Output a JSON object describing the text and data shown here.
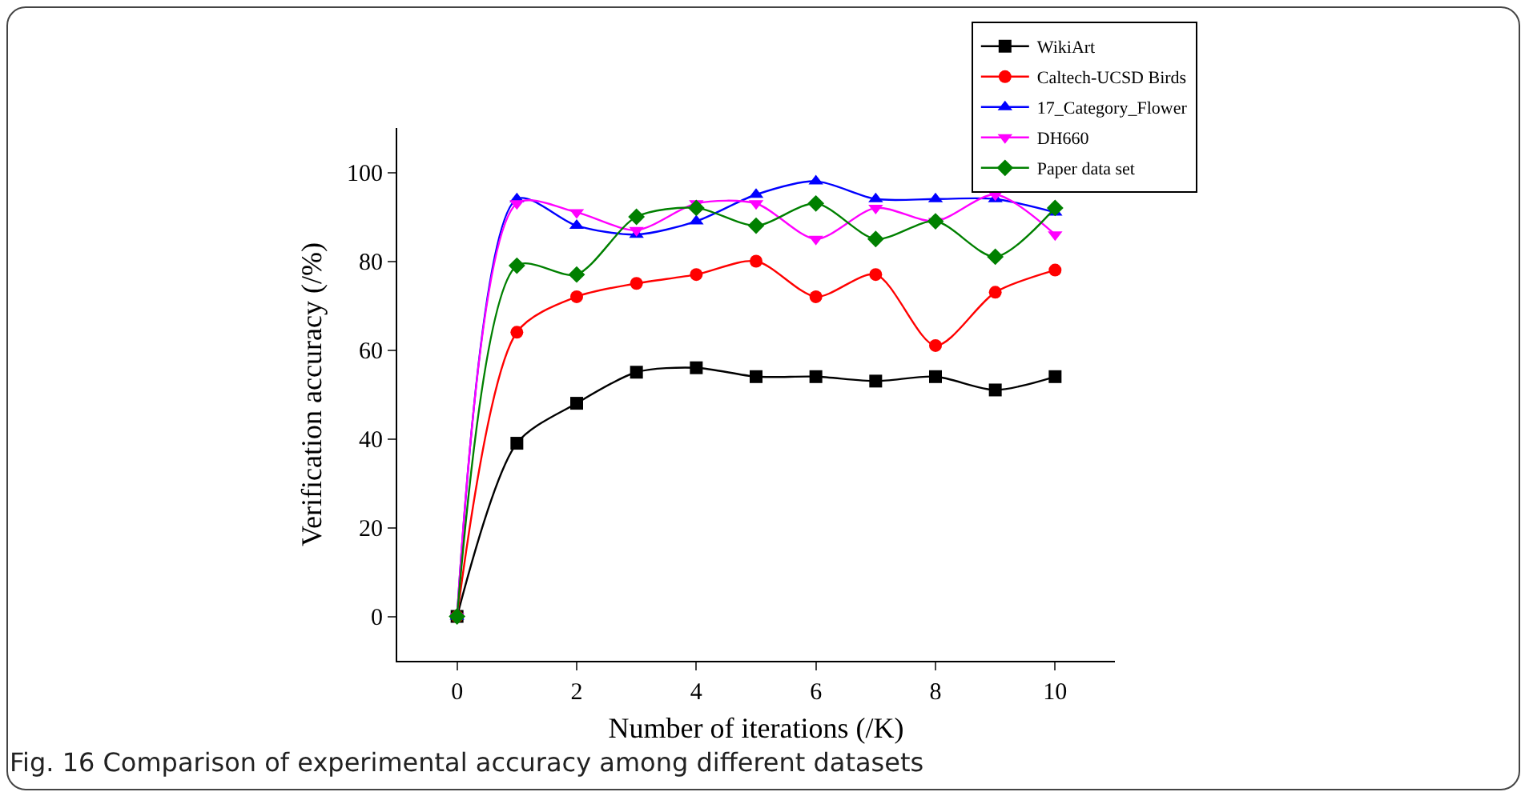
{
  "chart_data": {
    "type": "line",
    "xlabel": "Number of iterations (/K)",
    "ylabel": "Verification accuracy (/%)",
    "x": [
      0,
      1,
      2,
      3,
      4,
      5,
      6,
      7,
      8,
      9,
      10
    ],
    "xlim": [
      -1,
      11
    ],
    "xticks": [
      0,
      2,
      4,
      6,
      8,
      10
    ],
    "ylim": [
      -10,
      110
    ],
    "yticks": [
      0,
      20,
      40,
      60,
      80,
      100
    ],
    "grid": false,
    "legend": "top right",
    "line_style": "solid",
    "series": [
      {
        "name": "WikiArt",
        "color": "#000000",
        "marker": "square",
        "values": [
          0,
          39,
          48,
          55,
          56,
          54,
          54,
          53,
          54,
          51,
          54
        ]
      },
      {
        "name": "Caltech-UCSD Birds",
        "color": "#ff0000",
        "marker": "circle",
        "values": [
          0,
          64,
          72,
          75,
          77,
          80,
          72,
          77,
          61,
          73,
          78
        ]
      },
      {
        "name": "17_Category_Flower",
        "color": "#0000ff",
        "marker": "triangle",
        "values": [
          0,
          94,
          88,
          86,
          89,
          95,
          98,
          94,
          94,
          94,
          91
        ]
      },
      {
        "name": "DH660",
        "color": "#ff00ff",
        "marker": "triangle-down",
        "values": [
          0,
          93,
          91,
          87,
          93,
          93,
          85,
          92,
          89,
          95,
          86
        ]
      },
      {
        "name": "Paper data set",
        "color": "#008000",
        "marker": "diamond",
        "values": [
          0,
          79,
          77,
          90,
          92,
          88,
          93,
          85,
          89,
          81,
          92
        ]
      }
    ],
    "annotations": [
      "Fig. 16 Comparison of experimental accuracy among different datasets"
    ]
  }
}
